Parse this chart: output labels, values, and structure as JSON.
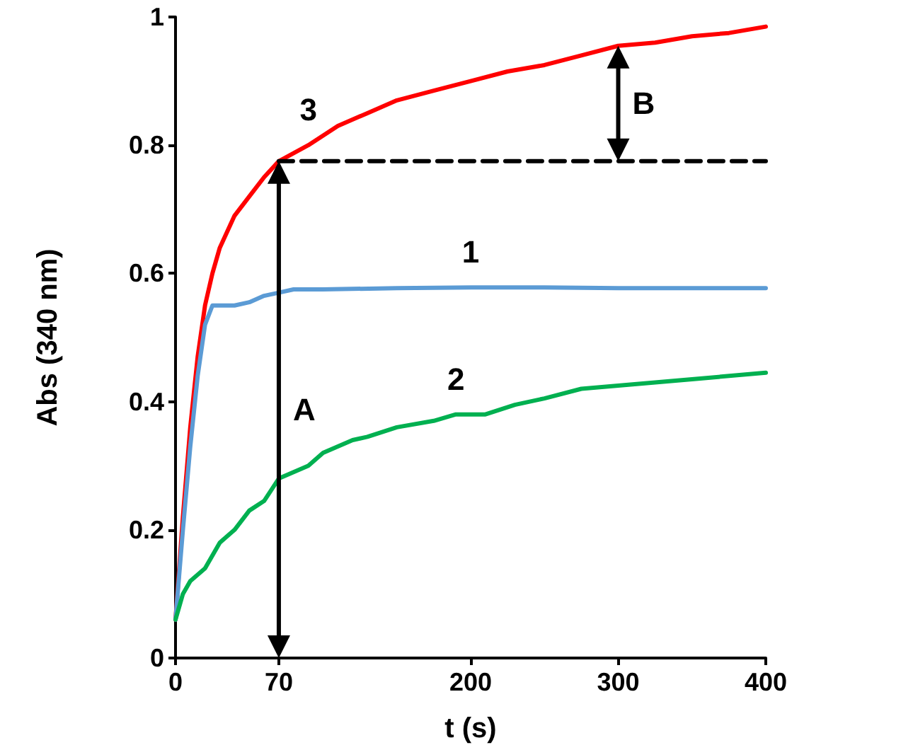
{
  "chart_data": {
    "type": "line",
    "xlabel": "t (s)",
    "ylabel": "Abs (340 nm)",
    "xlim": [
      0,
      400
    ],
    "xticks": [
      0,
      70,
      200,
      300,
      400
    ],
    "ylim": [
      0,
      1
    ],
    "yticks": [
      0,
      0.2,
      0.4,
      0.6,
      0.8,
      1
    ],
    "grid": false,
    "marker": "none",
    "line_style": "solid",
    "series": [
      {
        "name": "3",
        "color": "#ff0000",
        "x": [
          0,
          5,
          10,
          15,
          20,
          25,
          30,
          40,
          50,
          60,
          70,
          90,
          110,
          130,
          150,
          175,
          200,
          225,
          250,
          275,
          300,
          325,
          350,
          375,
          400
        ],
        "values": [
          0.06,
          0.22,
          0.36,
          0.47,
          0.55,
          0.6,
          0.64,
          0.69,
          0.72,
          0.75,
          0.775,
          0.8,
          0.83,
          0.85,
          0.87,
          0.885,
          0.9,
          0.915,
          0.925,
          0.94,
          0.955,
          0.96,
          0.97,
          0.975,
          0.985
        ]
      },
      {
        "name": "1",
        "color": "#5b9bd5",
        "x": [
          0,
          5,
          10,
          15,
          20,
          25,
          30,
          40,
          50,
          60,
          70,
          80,
          100,
          150,
          200,
          250,
          300,
          350,
          400
        ],
        "values": [
          0.06,
          0.2,
          0.33,
          0.44,
          0.52,
          0.55,
          0.55,
          0.55,
          0.555,
          0.565,
          0.57,
          0.575,
          0.575,
          0.577,
          0.578,
          0.578,
          0.577,
          0.577,
          0.577
        ]
      },
      {
        "name": "2",
        "color": "#00b050",
        "x": [
          0,
          5,
          10,
          20,
          30,
          40,
          50,
          60,
          70,
          80,
          90,
          100,
          110,
          120,
          130,
          150,
          175,
          190,
          210,
          230,
          250,
          275,
          300,
          350,
          400
        ],
        "values": [
          0.06,
          0.1,
          0.12,
          0.14,
          0.18,
          0.2,
          0.23,
          0.245,
          0.28,
          0.29,
          0.3,
          0.32,
          0.33,
          0.34,
          0.345,
          0.36,
          0.37,
          0.38,
          0.38,
          0.395,
          0.405,
          0.42,
          0.425,
          0.435,
          0.445
        ]
      },
      {
        "color": "#000000",
        "line_style": "dashed",
        "x": [
          70,
          400
        ],
        "values": [
          0.775,
          0.775
        ]
      }
    ],
    "annotations": [
      "A",
      "B"
    ]
  }
}
